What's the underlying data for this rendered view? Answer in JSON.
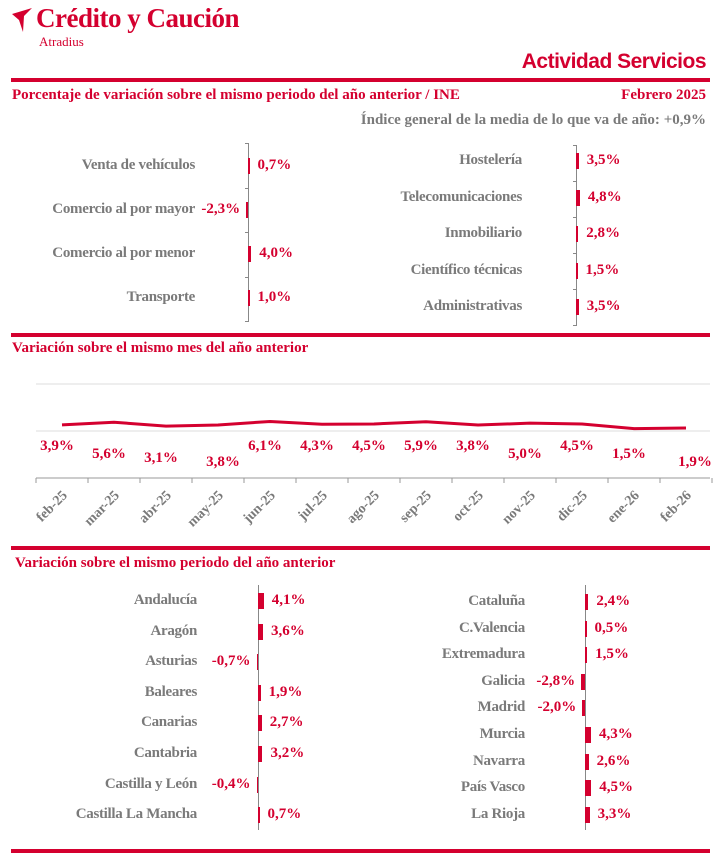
{
  "header": {
    "brand": "Crédito y Caución",
    "sub_brand": "Atradius",
    "report_title": "Actividad Servicios"
  },
  "section1": {
    "title": "Porcentaje de variación sobre el mismo periodo del año anterior / INE",
    "date": "Febrero 2025",
    "general_index_label": "Índice general de la media de lo que va de año:",
    "general_index_value": "+0,9%"
  },
  "section2": {
    "title": "Variación sobre el mismo mes del año anterior"
  },
  "section3": {
    "title": "Variación sobre el mismo periodo del año anterior"
  },
  "colors": {
    "accent": "#d4002f",
    "text_gray": "#7a7a7a"
  },
  "chart_data": [
    {
      "type": "bar",
      "orientation": "horizontal",
      "categories": [
        "Venta de vehículos",
        "Comercio al por mayor",
        "Comercio al por menor",
        "Transporte"
      ],
      "values": [
        0.7,
        -2.3,
        4.0,
        1.0
      ],
      "labels": [
        "0,7%",
        "-2,3%",
        "4,0%",
        "1,0%"
      ]
    },
    {
      "type": "bar",
      "orientation": "horizontal",
      "categories": [
        "Hostelería",
        "Telecomunicaciones",
        "Inmobiliario",
        "Científico técnicas",
        "Administrativas"
      ],
      "values": [
        3.5,
        4.8,
        2.8,
        1.5,
        3.5
      ],
      "labels": [
        "3,5%",
        "4,8%",
        "2,8%",
        "1,5%",
        "3,5%"
      ]
    },
    {
      "type": "line",
      "categories": [
        "feb-25",
        "mar-25",
        "abr-25",
        "may-25",
        "jun-25",
        "jul-25",
        "ago-25",
        "sep-25",
        "oct-25",
        "nov-25",
        "dic-25",
        "ene-26",
        "feb-26"
      ],
      "values": [
        3.9,
        5.6,
        3.1,
        3.8,
        6.1,
        4.3,
        4.5,
        5.9,
        3.8,
        5.0,
        4.5,
        1.5,
        1.9
      ],
      "labels": [
        "3,9%",
        "5,6%",
        "3,1%",
        "3,8%",
        "6,1%",
        "4,3%",
        "4,5%",
        "5,9%",
        "3,8%",
        "5,0%",
        "4,5%",
        "1,5%",
        "1,9%"
      ],
      "ylim": [
        -30,
        30
      ],
      "grid": true
    },
    {
      "type": "bar",
      "orientation": "horizontal",
      "categories": [
        "Andalucía",
        "Aragón",
        "Asturias",
        "Baleares",
        "Canarias",
        "Cantabria",
        "Castilla y León",
        "Castilla La Mancha"
      ],
      "values": [
        4.1,
        3.6,
        -0.7,
        1.9,
        2.7,
        3.2,
        -0.4,
        0.7
      ],
      "labels": [
        "4,1%",
        "3,6%",
        "-0,7%",
        "1,9%",
        "2,7%",
        "3,2%",
        "-0,4%",
        "0,7%"
      ]
    },
    {
      "type": "bar",
      "orientation": "horizontal",
      "categories": [
        "Cataluña",
        "C.Valencia",
        "Extremadura",
        "Galicia",
        "Madrid",
        "Murcia",
        "Navarra",
        "País Vasco",
        "La Rioja"
      ],
      "values": [
        2.4,
        0.5,
        1.5,
        -2.8,
        -2.0,
        4.3,
        2.6,
        4.5,
        3.3
      ],
      "labels": [
        "2,4%",
        "0,5%",
        "1,5%",
        "-2,8%",
        "-2,0%",
        "4,3%",
        "2,6%",
        "4,5%",
        "3,3%"
      ]
    }
  ]
}
